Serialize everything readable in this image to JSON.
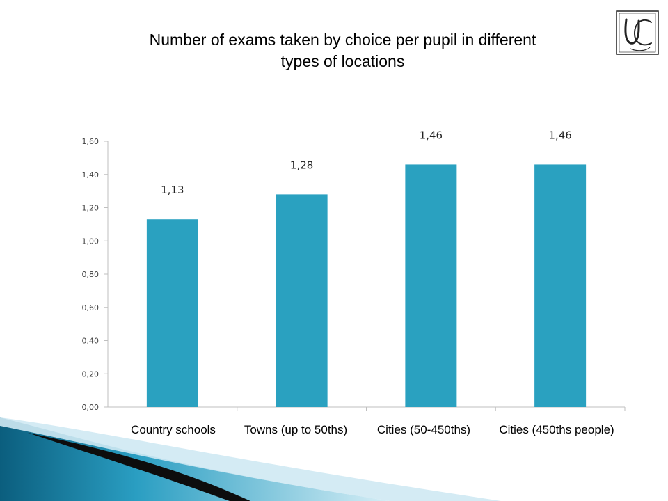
{
  "title_lines": [
    "Number of exams taken by choice per pupil in different",
    "types of locations"
  ],
  "logo": {
    "text": "UC"
  },
  "colors": {
    "bar": "#2aa1c0",
    "axis": "#bfbfbf",
    "decor_dark": "#0b5e7e",
    "decor_light": "#9fd6e8"
  },
  "chart_data": {
    "type": "bar",
    "categories": [
      "Country schools",
      "Towns (up to 50ths)",
      "Cities (50-450ths)",
      "Cities (450ths people)"
    ],
    "values": [
      1.13,
      1.28,
      1.46,
      1.46
    ],
    "value_labels": [
      "1,13",
      "1,28",
      "1,46",
      "1,46"
    ],
    "ylim": [
      0,
      1.6
    ],
    "yticks": [
      0,
      0.2,
      0.4,
      0.6,
      0.8,
      1.0,
      1.2,
      1.4,
      1.6
    ],
    "ytick_labels": [
      "0,00",
      "0,20",
      "0,40",
      "0,60",
      "0,80",
      "1,00",
      "1,20",
      "1,40",
      "1,60"
    ],
    "grid": false,
    "legend": "none"
  }
}
